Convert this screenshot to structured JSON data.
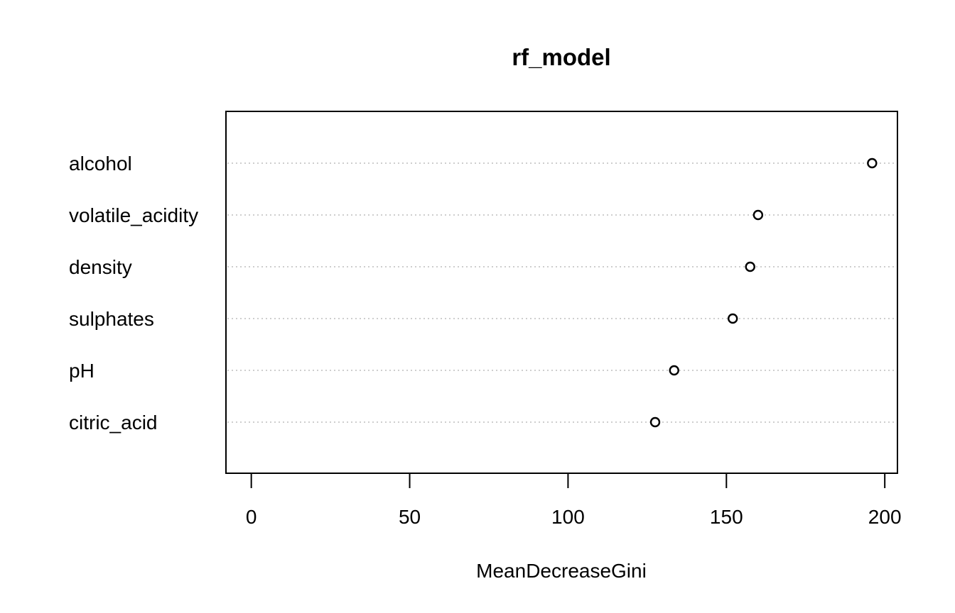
{
  "chart_data": {
    "type": "scatter",
    "title": "rf_model",
    "xlabel": "MeanDecreaseGini",
    "ylabel": "",
    "xlim": [
      -8,
      204
    ],
    "x_ticks": [
      0,
      50,
      100,
      150,
      200
    ],
    "x_tick_labels": [
      "0",
      "50",
      "100",
      "150",
      "200"
    ],
    "grid": "horizontal dotted",
    "categories": [
      "alcohol",
      "volatile_acidity",
      "density",
      "sulphates",
      "pH",
      "citric_acid"
    ],
    "values": [
      196,
      160,
      157.5,
      152,
      133.5,
      127.5
    ],
    "colors": {
      "grid": "#bebebe",
      "point_stroke": "#000000",
      "point_fill": "#ffffff",
      "text": "#000000"
    }
  }
}
